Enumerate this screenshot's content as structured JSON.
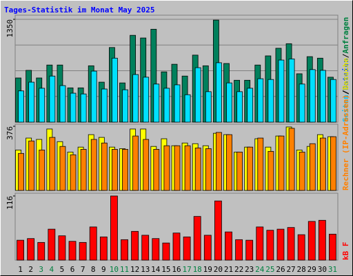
{
  "chart_data": [
    {
      "type": "bar",
      "title": "Tages-Statistik im Monat May 2025",
      "ylim": [
        0,
        1350
      ],
      "yticks": [
        1350
      ],
      "legend_parts": [
        {
          "text": "Seiten",
          "color": "#00c0ff"
        },
        {
          "text": "/",
          "color": "#000000"
        },
        {
          "text": "Dateien",
          "color": "#0040ff"
        },
        {
          "text": "/",
          "color": "#000000"
        },
        {
          "text": "Anfragen",
          "color": "#008040"
        }
      ],
      "series": [
        {
          "color": "#00805c",
          "values": [
            580,
            680,
            580,
            750,
            750,
            450,
            450,
            740,
            525,
            980,
            515,
            1140,
            1105,
            1220,
            660,
            760,
            605,
            880,
            740,
            1340,
            770,
            550,
            550,
            750,
            870,
            970,
            1030,
            635,
            860,
            840,
            590
          ]
        },
        {
          "color": "#00e0ff",
          "values": [
            410,
            525,
            445,
            605,
            480,
            380,
            370,
            670,
            435,
            840,
            425,
            625,
            590,
            500,
            445,
            490,
            360,
            715,
            400,
            780,
            515,
            400,
            445,
            570,
            560,
            815,
            830,
            500,
            690,
            680,
            560
          ]
        }
      ]
    },
    {
      "type": "bar",
      "ylim": [
        0,
        376
      ],
      "yticks": [
        376
      ],
      "legend_parts": [
        {
          "text": "Rechner (IP-Adressen)",
          "color": "#ff8000"
        },
        {
          "text": "/",
          "color": "#000000"
        },
        {
          "text": "Besuche",
          "color": "#e0e000"
        }
      ],
      "series": [
        {
          "color": "#ffff00",
          "values": [
            237,
            307,
            299,
            360,
            286,
            225,
            254,
            327,
            311,
            254,
            245,
            360,
            360,
            258,
            303,
            262,
            278,
            274,
            262,
            335,
            327,
            225,
            254,
            303,
            254,
            319,
            372,
            237,
            258,
            327,
            315
          ]
        },
        {
          "color": "#ff8000",
          "values": [
            217,
            290,
            237,
            311,
            258,
            209,
            241,
            299,
            278,
            241,
            241,
            319,
            299,
            241,
            262,
            262,
            262,
            249,
            245,
            340,
            327,
            225,
            254,
            307,
            229,
            319,
            364,
            225,
            274,
            307,
            315
          ]
        }
      ]
    },
    {
      "type": "bar",
      "ylim": [
        0,
        116
      ],
      "yticks": [
        116
      ],
      "legend_parts": [
        {
          "text": "kB F",
          "color": "#ff0000"
        }
      ],
      "categories": [
        "1",
        "2",
        "3",
        "4",
        "5",
        "6",
        "7",
        "8",
        "9",
        "10",
        "11",
        "12",
        "13",
        "14",
        "15",
        "16",
        "17",
        "18",
        "19",
        "20",
        "21",
        "22",
        "23",
        "24",
        "25",
        "26",
        "27",
        "28",
        "29",
        "30",
        "31"
      ],
      "category_colors": [
        "#000000",
        "#000000",
        "#008040",
        "#008040",
        "#000000",
        "#000000",
        "#000000",
        "#000000",
        "#000000",
        "#008040",
        "#008040",
        "#000000",
        "#000000",
        "#000000",
        "#000000",
        "#000000",
        "#008040",
        "#008040",
        "#000000",
        "#000000",
        "#000000",
        "#000000",
        "#000000",
        "#008040",
        "#008040",
        "#000000",
        "#000000",
        "#000000",
        "#000000",
        "#000000",
        "#008040"
      ],
      "series": [
        {
          "color": "#ff0000",
          "values": [
            36,
            39,
            32,
            56,
            44,
            34,
            32,
            60,
            42,
            116,
            37,
            52,
            45,
            39,
            31,
            49,
            42,
            79,
            45,
            107,
            51,
            37,
            36,
            60,
            54,
            56,
            59,
            46,
            70,
            72,
            47
          ]
        }
      ]
    }
  ]
}
